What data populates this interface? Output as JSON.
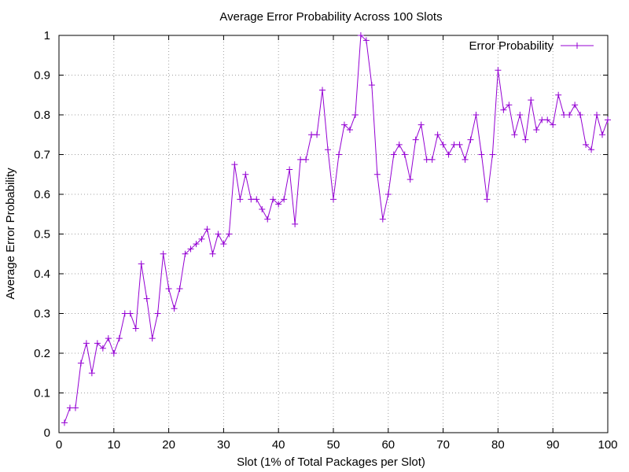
{
  "chart_data": {
    "type": "line",
    "title": "Average Error Probability Across 100 Slots",
    "xlabel": "Slot (1% of Total Packages per Slot)",
    "ylabel": "Average Error Probability",
    "xlim": [
      0,
      100
    ],
    "ylim": [
      0,
      1
    ],
    "xticks": [
      "0",
      "10",
      "20",
      "30",
      "40",
      "50",
      "60",
      "70",
      "80",
      "90",
      "100"
    ],
    "yticks": [
      "0",
      "0.1",
      "0.2",
      "0.3",
      "0.4",
      "0.5",
      "0.6",
      "0.7",
      "0.8",
      "0.9",
      "1"
    ],
    "grid": true,
    "legend_position": "top-right",
    "color": "#9400d3",
    "series": [
      {
        "name": "Error Probability",
        "x": [
          1,
          2,
          3,
          4,
          5,
          6,
          7,
          8,
          9,
          10,
          11,
          12,
          13,
          14,
          15,
          16,
          17,
          18,
          19,
          20,
          21,
          22,
          23,
          24,
          25,
          26,
          27,
          28,
          29,
          30,
          31,
          32,
          33,
          34,
          35,
          36,
          37,
          38,
          39,
          40,
          41,
          42,
          43,
          44,
          45,
          46,
          47,
          48,
          49,
          50,
          51,
          52,
          53,
          54,
          55,
          56,
          57,
          58,
          59,
          60,
          61,
          62,
          63,
          64,
          65,
          66,
          67,
          68,
          69,
          70,
          71,
          72,
          73,
          74,
          75,
          76,
          77,
          78,
          79,
          80,
          81,
          82,
          83,
          84,
          85,
          86,
          87,
          88,
          89,
          90,
          91,
          92,
          93,
          94,
          95,
          96,
          97,
          98,
          99,
          100
        ],
        "values": [
          0.025,
          0.0625,
          0.0625,
          0.175,
          0.225,
          0.15,
          0.225,
          0.2125,
          0.2375,
          0.2,
          0.2375,
          0.3,
          0.3,
          0.2625,
          0.425,
          0.3375,
          0.2375,
          0.3,
          0.45,
          0.3625,
          0.3125,
          0.3625,
          0.45,
          0.4625,
          0.475,
          0.4875,
          0.5125,
          0.45,
          0.5,
          0.475,
          0.5,
          0.675,
          0.5875,
          0.65,
          0.5875,
          0.5875,
          0.5625,
          0.5375,
          0.5875,
          0.575,
          0.5875,
          0.6625,
          0.525,
          0.6875,
          0.6875,
          0.75,
          0.75,
          0.8625,
          0.7125,
          0.5875,
          0.7,
          0.775,
          0.7625,
          0.8,
          1.0,
          0.9875,
          0.875,
          0.65,
          0.5375,
          0.6,
          0.7,
          0.725,
          0.7,
          0.6375,
          0.7375,
          0.775,
          0.6875,
          0.6875,
          0.75,
          0.725,
          0.7,
          0.725,
          0.725,
          0.6875,
          0.7375,
          0.8,
          0.7,
          0.5875,
          0.7,
          0.9125,
          0.8125,
          0.825,
          0.75,
          0.8,
          0.7375,
          0.8375,
          0.7625,
          0.7875,
          0.7875,
          0.775,
          0.85,
          0.8,
          0.8,
          0.825,
          0.8,
          0.725,
          0.7125,
          0.8,
          0.75,
          0.7875
        ]
      }
    ]
  }
}
